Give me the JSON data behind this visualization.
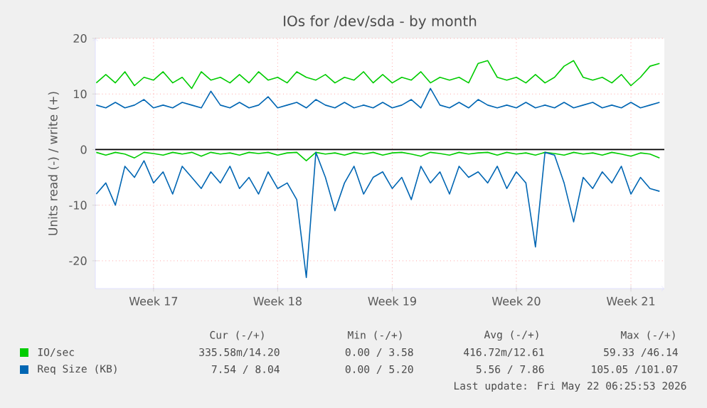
{
  "chart_data": {
    "type": "line",
    "title": "IOs for /dev/sda - by month",
    "ylabel": "Units read (-) / write (+)",
    "categories": [
      null,
      null,
      null,
      null,
      null,
      null,
      "Week 17",
      null,
      null,
      null,
      null,
      null,
      null,
      null,
      null,
      null,
      null,
      null,
      null,
      "Week 18",
      null,
      null,
      null,
      null,
      null,
      null,
      null,
      null,
      null,
      null,
      null,
      "Week 19",
      null,
      null,
      null,
      null,
      null,
      null,
      null,
      null,
      null,
      null,
      null,
      null,
      "Week 20",
      null,
      null,
      null,
      null,
      null,
      null,
      null,
      null,
      null,
      null,
      null,
      "Week 21",
      null,
      null,
      null
    ],
    "series": [
      {
        "name": "IO/sec",
        "color": "#00cc00",
        "values": [
          12,
          13.5,
          12,
          14,
          11.5,
          13,
          12.5,
          14,
          12,
          13,
          11,
          14,
          12.5,
          13,
          12,
          13.5,
          12,
          14,
          12.5,
          13,
          12,
          14,
          13,
          12.5,
          13.5,
          12,
          13,
          12.5,
          14,
          12,
          13.5,
          12,
          13,
          12.5,
          14,
          12,
          13,
          12.5,
          13,
          12,
          15.5,
          16,
          13,
          12.5,
          13,
          12,
          13.5,
          12,
          13,
          15,
          16,
          13,
          12.5,
          13,
          12,
          13.5,
          11.5,
          13,
          15,
          15.5
        ]
      },
      {
        "color": "#00cc00",
        "values": [
          -0.5,
          -1,
          -0.5,
          -0.8,
          -1.5,
          -0.5,
          -0.7,
          -1,
          -0.5,
          -0.8,
          -0.5,
          -1.2,
          -0.5,
          -0.8,
          -0.6,
          -1,
          -0.5,
          -0.7,
          -0.5,
          -1,
          -0.6,
          -0.5,
          -2,
          -0.5,
          -0.8,
          -0.6,
          -1,
          -0.5,
          -0.8,
          -0.5,
          -1,
          -0.6,
          -0.5,
          -0.8,
          -1.2,
          -0.5,
          -0.7,
          -1,
          -0.5,
          -0.8,
          -0.6,
          -0.5,
          -1,
          -0.5,
          -0.8,
          -0.6,
          -1,
          -0.5,
          -0.7,
          -1,
          -0.5,
          -0.8,
          -0.6,
          -1,
          -0.5,
          -0.8,
          -1.2,
          -0.6,
          -0.8,
          -1.5
        ]
      },
      {
        "name": "Req Size (KB)",
        "color": "#0066b3",
        "values": [
          8,
          7.5,
          8.5,
          7.5,
          8,
          9,
          7.5,
          8,
          7.5,
          8.5,
          8,
          7.5,
          10.5,
          8,
          7.5,
          8.5,
          7.5,
          8,
          9.5,
          7.5,
          8,
          8.5,
          7.5,
          9,
          8,
          7.5,
          8.5,
          7.5,
          8,
          7.5,
          8.5,
          7.5,
          8,
          9,
          7.5,
          11,
          8,
          7.5,
          8.5,
          7.5,
          9,
          8,
          7.5,
          8,
          7.5,
          8.5,
          7.5,
          8,
          7.5,
          8.5,
          7.5,
          8,
          8.5,
          7.5,
          8,
          7.5,
          8.5,
          7.5,
          8,
          8.5
        ]
      },
      {
        "color": "#0066b3",
        "values": [
          -8,
          -6,
          -10,
          -3,
          -5,
          -2,
          -6,
          -4,
          -8,
          -3,
          -5,
          -7,
          -4,
          -6,
          -3,
          -7,
          -5,
          -8,
          -4,
          -7,
          -6,
          -9,
          -23,
          -0.5,
          -5,
          -11,
          -6,
          -3,
          -8,
          -5,
          -4,
          -7,
          -5,
          -9,
          -3,
          -6,
          -4,
          -8,
          -3,
          -5,
          -4,
          -6,
          -3,
          -7,
          -4,
          -6,
          -17.5,
          -0.5,
          -1,
          -6,
          -13,
          -5,
          -7,
          -4,
          -6,
          -3,
          -8,
          -5,
          -7,
          -7.5
        ]
      }
    ],
    "ylim": [
      -25,
      20
    ],
    "yticks": [
      -20,
      -10,
      0,
      10,
      20
    ],
    "grid": true,
    "legend": "bottom",
    "ref_lines": [
      {
        "axis": "y",
        "value": 0,
        "color": "#000000"
      }
    ],
    "annotations": [
      "Cur (-/+)",
      "Min (-/+)",
      "Avg (-/+)",
      "Max (-/+)",
      "335.58m/14.20",
      "0.00 / 3.58",
      "416.72m/12.61",
      "59.33 /46.14",
      "7.54 / 8.04",
      "0.00 / 5.20",
      "5.56 / 7.86",
      "105.05 /101.07",
      "Last update: Fri May 22 06:25:53 2026"
    ]
  }
}
